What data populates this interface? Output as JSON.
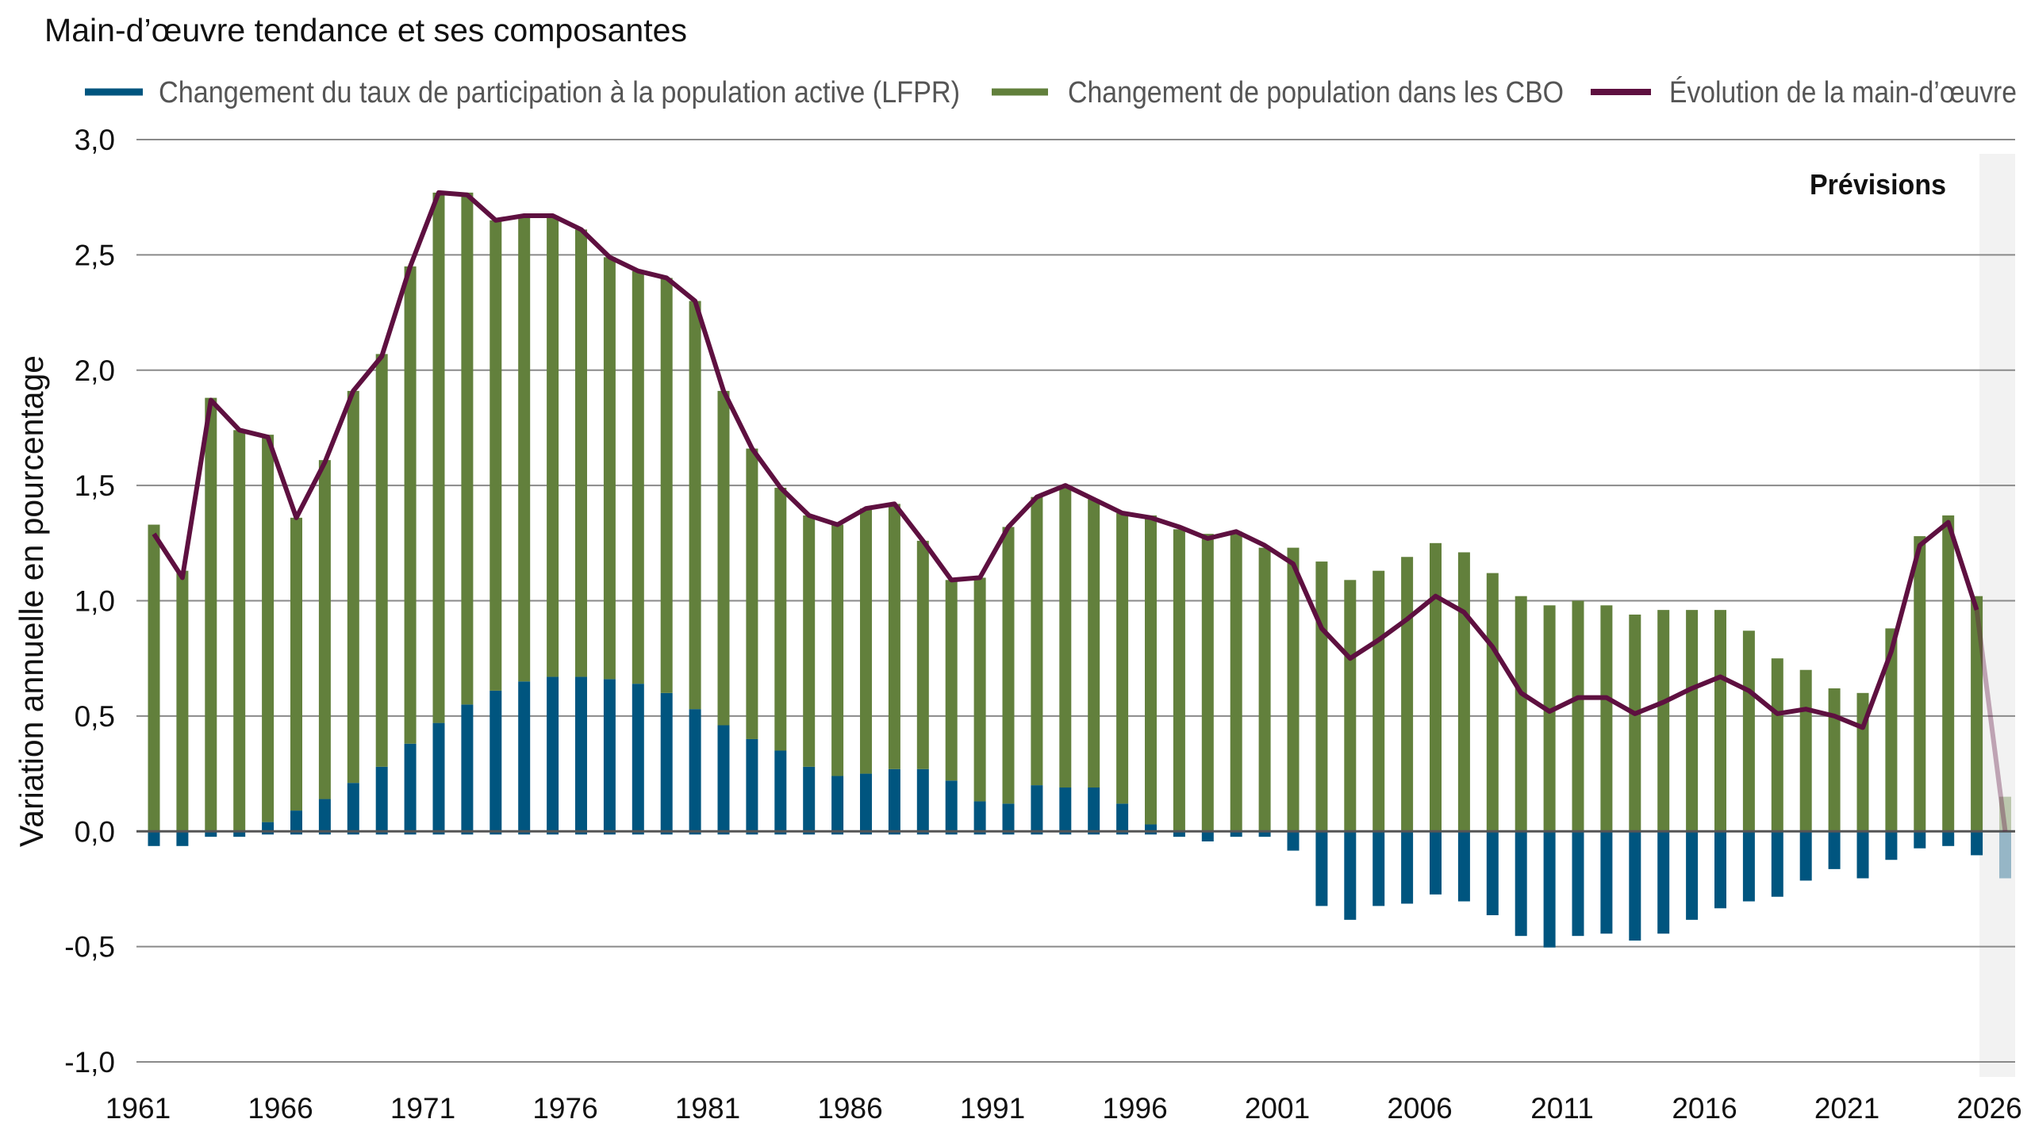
{
  "chart_data": {
    "type": "bar",
    "stacked": true,
    "title": "Main-d’œuvre tendance et ses composantes",
    "ylabel": "Variation annuelle en pourcentage",
    "xlabel": "",
    "ylim": [
      -1.0,
      3.0
    ],
    "yticks": [
      "3,0",
      "2,5",
      "2,0",
      "1,5",
      "1,0",
      "0,5",
      "0,0",
      "-0,5",
      "-1,0"
    ],
    "ytick_values": [
      3.0,
      2.5,
      2.0,
      1.5,
      1.0,
      0.5,
      0.0,
      -0.5,
      -1.0
    ],
    "xticks": [
      "1961",
      "1966",
      "1971",
      "1976",
      "1981",
      "1986",
      "1991",
      "1996",
      "2001",
      "2006",
      "2011",
      "2016",
      "2021",
      "2026"
    ],
    "grid": true,
    "legend_position": "top",
    "annotation": "Prévisions",
    "forecast_years": [
      2026
    ],
    "colors": {
      "lfpr": "#00557F",
      "population": "#62803C",
      "labor_force": "#5E1040",
      "forecast_shade": "#F2F2F2",
      "grid": "#8A8A8A",
      "zero_line": "#555555"
    },
    "x": [
      1961,
      1962,
      1963,
      1964,
      1965,
      1966,
      1967,
      1968,
      1969,
      1970,
      1971,
      1972,
      1973,
      1974,
      1975,
      1976,
      1977,
      1978,
      1979,
      1980,
      1981,
      1982,
      1983,
      1984,
      1985,
      1986,
      1987,
      1988,
      1989,
      1990,
      1991,
      1992,
      1993,
      1994,
      1995,
      1996,
      1997,
      1998,
      1999,
      2000,
      2001,
      2002,
      2003,
      2004,
      2005,
      2006,
      2007,
      2008,
      2009,
      2010,
      2011,
      2012,
      2013,
      2014,
      2015,
      2016,
      2017,
      2018,
      2019,
      2020,
      2021,
      2022,
      2023,
      2024,
      2025,
      2026
    ],
    "series": [
      {
        "name": "Changement du taux de participation à la population active (LFPR)",
        "kind": "bar",
        "values": [
          -0.05,
          -0.05,
          -0.01,
          -0.01,
          0.04,
          0.09,
          0.14,
          0.21,
          0.28,
          0.38,
          0.47,
          0.55,
          0.61,
          0.65,
          0.67,
          0.67,
          0.66,
          0.64,
          0.6,
          0.53,
          0.46,
          0.4,
          0.35,
          0.28,
          0.24,
          0.25,
          0.27,
          0.27,
          0.22,
          0.13,
          0.12,
          0.2,
          0.19,
          0.19,
          0.12,
          0.03,
          -0.01,
          -0.03,
          -0.01,
          -0.01,
          -0.07,
          -0.31,
          -0.37,
          -0.31,
          -0.3,
          -0.26,
          -0.29,
          -0.35,
          -0.44,
          -0.49,
          -0.44,
          -0.43,
          -0.46,
          -0.43,
          -0.37,
          -0.32,
          -0.29,
          -0.27,
          -0.2,
          -0.15,
          -0.19,
          -0.11,
          -0.06,
          -0.05,
          -0.09,
          -0.19
        ]
      },
      {
        "name": "Changement de population dans les CBO",
        "kind": "bar",
        "values": [
          1.33,
          1.13,
          1.88,
          1.74,
          1.68,
          1.27,
          1.47,
          1.7,
          1.79,
          2.07,
          2.3,
          2.22,
          2.04,
          2.02,
          2.0,
          1.94,
          1.83,
          1.79,
          1.8,
          1.77,
          1.45,
          1.26,
          1.14,
          1.09,
          1.09,
          1.15,
          1.15,
          0.99,
          0.87,
          0.97,
          1.2,
          1.25,
          1.31,
          1.25,
          1.26,
          1.34,
          1.31,
          1.29,
          1.3,
          1.23,
          1.23,
          1.17,
          1.09,
          1.13,
          1.19,
          1.25,
          1.21,
          1.12,
          1.02,
          0.98,
          1.0,
          0.98,
          0.94,
          0.96,
          0.96,
          0.96,
          0.87,
          0.75,
          0.7,
          0.62,
          0.6,
          0.88,
          1.28,
          1.37,
          1.02,
          0.15
        ]
      },
      {
        "name": "Évolution de la main-d’œuvre",
        "kind": "line",
        "values": [
          1.29,
          1.1,
          1.87,
          1.74,
          1.71,
          1.36,
          1.6,
          1.91,
          2.06,
          2.45,
          2.77,
          2.76,
          2.65,
          2.67,
          2.67,
          2.61,
          2.49,
          2.43,
          2.4,
          2.3,
          1.91,
          1.66,
          1.49,
          1.37,
          1.33,
          1.4,
          1.42,
          1.26,
          1.09,
          1.1,
          1.32,
          1.45,
          1.5,
          1.44,
          1.38,
          1.36,
          1.32,
          1.27,
          1.3,
          1.24,
          1.16,
          0.88,
          0.75,
          0.83,
          0.92,
          1.02,
          0.95,
          0.8,
          0.6,
          0.52,
          0.58,
          0.58,
          0.51,
          0.56,
          0.62,
          0.67,
          0.61,
          0.51,
          0.53,
          0.5,
          0.45,
          0.78,
          1.24,
          1.34,
          0.96,
          0.0
        ]
      }
    ]
  }
}
